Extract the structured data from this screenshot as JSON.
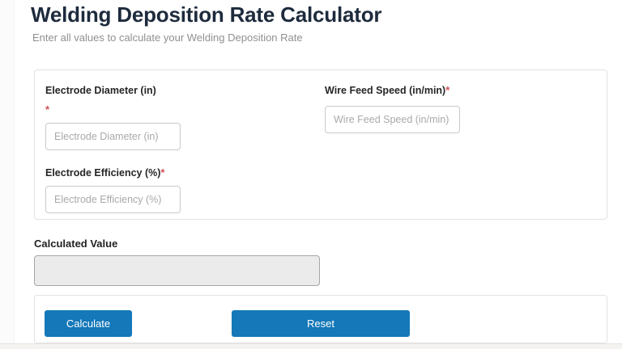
{
  "page": {
    "title": "Welding Deposition Rate Calculator",
    "subtitle": "Enter all values to calculate your Welding Deposition Rate"
  },
  "form": {
    "fields": [
      {
        "label": "Electrode Diameter (in)",
        "required_marker": "*",
        "placeholder": "Electrode Diameter (in)",
        "value": ""
      },
      {
        "label": "Wire Feed Speed (in/min)",
        "required_marker": "*",
        "placeholder": "Wire Feed Speed (in/min)",
        "value": ""
      },
      {
        "label": "Electrode Efficiency (%)",
        "required_marker": "*",
        "placeholder": "Electrode Efficiency (%)",
        "value": ""
      }
    ]
  },
  "result": {
    "label": "Calculated Value",
    "value": ""
  },
  "actions": {
    "calculate_label": "Calculate",
    "reset_label": "Reset"
  },
  "colors": {
    "accent_blue": "#1478b9",
    "title_navy": "#1e2b3d",
    "required_red": "#d05159",
    "readonly_bg": "#ebebeb"
  }
}
